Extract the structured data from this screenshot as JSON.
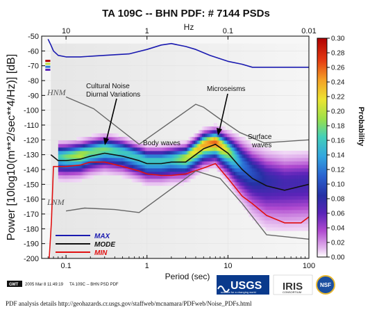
{
  "chart_data": {
    "type": "heatmap",
    "title": "TA 109C -- BHN  PDF: # 7144 PSDs",
    "xlabel": "Period (sec)",
    "ylabel": "Power [10log10(m**2/sec**4/Hz)] [dB]",
    "x_scale": "log",
    "xlim": [
      0.05,
      100
    ],
    "ylim": [
      -200,
      -50
    ],
    "x_ticks": [
      {
        "value": 0.1,
        "label": "0.1"
      },
      {
        "value": 1,
        "label": "1"
      },
      {
        "value": 10,
        "label": "10"
      },
      {
        "value": 100,
        "label": "100"
      }
    ],
    "y_ticks": [
      {
        "value": -50,
        "label": "-50"
      },
      {
        "value": -60,
        "label": "-60"
      },
      {
        "value": -70,
        "label": "-70"
      },
      {
        "value": -80,
        "label": "-80"
      },
      {
        "value": -90,
        "label": "-90"
      },
      {
        "value": -100,
        "label": "-100"
      },
      {
        "value": -110,
        "label": "-110"
      },
      {
        "value": -120,
        "label": "-120"
      },
      {
        "value": -130,
        "label": "-130"
      },
      {
        "value": -140,
        "label": "-140"
      },
      {
        "value": -150,
        "label": "-150"
      },
      {
        "value": -160,
        "label": "-160"
      },
      {
        "value": -170,
        "label": "-170"
      },
      {
        "value": -180,
        "label": "-180"
      },
      {
        "value": -190,
        "label": "-190"
      },
      {
        "value": -200,
        "label": "-200"
      }
    ],
    "top_axis": {
      "label": "Hz",
      "ticks": [
        {
          "period": 0.1,
          "label": "10"
        },
        {
          "period": 1,
          "label": "1"
        },
        {
          "period": 10,
          "label": "0.1"
        },
        {
          "period": 100,
          "label": "0.01"
        }
      ]
    },
    "colorbar": {
      "label": "Probability",
      "min": 0.0,
      "max": 0.3,
      "ticks": [
        "0.00",
        "0.02",
        "0.04",
        "0.06",
        "0.08",
        "0.10",
        "0.12",
        "0.14",
        "0.16",
        "0.18",
        "0.20",
        "0.22",
        "0.24",
        "0.26",
        "0.28",
        "0.30"
      ],
      "colors": [
        "#ffffff",
        "#d9a6e6",
        "#9b2fc4",
        "#3d1fa8",
        "#1f2f9e",
        "#2a6fd6",
        "#35b6e0",
        "#47d4b0",
        "#b4e03a",
        "#f0e030",
        "#f39a25",
        "#e03010",
        "#b00000"
      ]
    },
    "series": [
      {
        "name": "MAX",
        "color": "#1a1ab0",
        "x": [
          0.06,
          0.065,
          0.07,
          0.08,
          0.1,
          0.15,
          0.3,
          0.6,
          1,
          1.5,
          2,
          3,
          4,
          6,
          10,
          15,
          20,
          40,
          100
        ],
        "y": [
          -52,
          -56,
          -60,
          -63,
          -64,
          -64,
          -63,
          -62,
          -59,
          -56,
          -55,
          -57,
          -59,
          -63,
          -67,
          -69,
          -71,
          -71,
          -71
        ]
      },
      {
        "name": "MODE",
        "color": "#111111",
        "x": [
          0.065,
          0.08,
          0.1,
          0.15,
          0.2,
          0.3,
          0.5,
          0.8,
          1,
          1.5,
          2,
          3,
          5,
          7,
          10,
          15,
          20,
          30,
          50,
          100
        ],
        "y": [
          -130,
          -134,
          -134,
          -133,
          -131,
          -129,
          -131,
          -134,
          -136,
          -136,
          -135,
          -135,
          -126,
          -123,
          -129,
          -140,
          -146,
          -151,
          -154,
          -150
        ]
      },
      {
        "name": "MIN",
        "color": "#e01010",
        "x": [
          0.062,
          0.066,
          0.07,
          0.08,
          0.1,
          0.15,
          0.2,
          0.3,
          0.5,
          0.8,
          1,
          1.5,
          2,
          3,
          5,
          7,
          10,
          15,
          20,
          30,
          50,
          80,
          100
        ],
        "y": [
          -200,
          -175,
          -138,
          -138,
          -138,
          -137,
          -135,
          -135,
          -138,
          -141,
          -143,
          -144,
          -144,
          -143,
          -139,
          -136,
          -146,
          -158,
          -163,
          -171,
          -176,
          -176,
          -172
        ]
      },
      {
        "name": "HNM",
        "color": "#666666",
        "x": [
          0.1,
          0.22,
          0.8,
          4,
          5,
          8,
          14,
          28,
          100
        ],
        "y": [
          -91,
          -99,
          -123,
          -96,
          -98,
          -106,
          -115,
          -122,
          -120
        ]
      },
      {
        "name": "LNM",
        "color": "#666666",
        "x": [
          0.1,
          0.17,
          0.4,
          0.8,
          4,
          8,
          15,
          30,
          100
        ],
        "y": [
          -168,
          -166,
          -167,
          -169,
          -141,
          -146,
          -163,
          -184,
          -187
        ]
      }
    ],
    "density": {
      "x": [
        0.08,
        0.1,
        0.15,
        0.2,
        0.3,
        0.5,
        0.8,
        1,
        1.5,
        2,
        3,
        5,
        7,
        10,
        15,
        20,
        30,
        50,
        100
      ],
      "center": [
        -131,
        -131,
        -130,
        -128,
        -126,
        -128,
        -132,
        -134,
        -134,
        -133,
        -132,
        -123,
        -121,
        -127,
        -136,
        -142,
        -147,
        -149,
        -148
      ],
      "halfwidth": [
        4,
        4,
        4,
        4,
        4,
        4,
        4,
        4,
        4,
        4,
        4,
        4,
        4,
        5,
        7,
        8,
        9,
        9,
        9
      ],
      "peak": [
        0.16,
        0.18,
        0.2,
        0.18,
        0.18,
        0.16,
        0.16,
        0.16,
        0.16,
        0.16,
        0.2,
        0.24,
        0.26,
        0.2,
        0.12,
        0.1,
        0.08,
        0.07,
        0.07
      ]
    },
    "legend_placement": "bottom-left",
    "annotations": [
      {
        "text": "Cultural Noise\nDiurnal Variations",
        "at": {
          "x": 0.3,
          "y": -121
        }
      },
      {
        "text": "Microseisms",
        "at": {
          "x": 6.5,
          "y": -124
        }
      },
      {
        "text": "Body waves",
        "at": {
          "x": 1.2,
          "y": -122
        }
      },
      {
        "text": "Surface\nwaves",
        "at": {
          "x": 20,
          "y": -116
        }
      },
      {
        "text": "HNM",
        "at": {
          "x": 0.085,
          "y": -86
        }
      },
      {
        "text": "LNM",
        "at": {
          "x": 0.085,
          "y": -174
        }
      }
    ]
  },
  "legend": {
    "max": "MAX",
    "mode": "MODE",
    "min": "MIN"
  },
  "labels": {
    "hnm": "HNM",
    "lnm": "LNM",
    "cultural_1": "Cultural Noise",
    "cultural_2": "Diurnal Variations",
    "microseisms": "Microseisms",
    "body_waves": "Body waves",
    "surface_1": "Surface",
    "surface_2": "waves"
  },
  "footer": {
    "gmt_badge": "GMT",
    "gmt_timestamp": "2005 Mar 8 11:49:19",
    "plot_caption": "TA 109C -- BHN PSD PDF",
    "usgs": "USGS",
    "usgs_tagline": "science for a changing world",
    "iris": "IRIS",
    "iris_sub": "CONSORTIUM",
    "nsf": "NSF",
    "details": "PDF analysis details http://geohazards.cr.usgs.gov/staffweb/mcnamara/PDFweb/Noise_PDFs.html"
  },
  "colors": {
    "max": "#1a1ab0",
    "mode": "#111111",
    "min": "#e01010",
    "models": "#666666"
  }
}
